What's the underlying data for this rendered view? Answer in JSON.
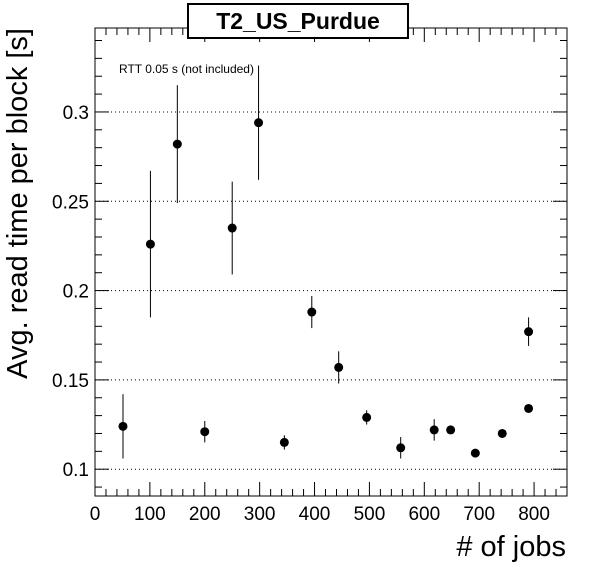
{
  "chart_data": {
    "type": "scatter",
    "title": "T2_US_Purdue",
    "xlabel": "# of jobs",
    "ylabel": "Avg. read time per block [s]",
    "annotation": "RTT 0.05 s (not included)",
    "xlim": [
      0,
      860
    ],
    "ylim": [
      0.085,
      0.347
    ],
    "x_ticks": [
      0,
      100,
      200,
      300,
      400,
      500,
      600,
      700,
      800
    ],
    "y_ticks": [
      0.1,
      0.15,
      0.2,
      0.25,
      0.3
    ],
    "y_tick_labels": [
      "0.1",
      "0.15",
      "0.2",
      "0.25",
      "0.3"
    ],
    "grid": "horizontal dotted at major y ticks",
    "points": [
      {
        "x": 51,
        "y": 0.124,
        "err": 0.018
      },
      {
        "x": 101,
        "y": 0.226,
        "err": 0.041
      },
      {
        "x": 150,
        "y": 0.282,
        "err": 0.033
      },
      {
        "x": 200,
        "y": 0.121,
        "err": 0.006
      },
      {
        "x": 250,
        "y": 0.235,
        "err": 0.026
      },
      {
        "x": 298,
        "y": 0.294,
        "err": 0.032
      },
      {
        "x": 345,
        "y": 0.115,
        "err": 0.004
      },
      {
        "x": 395,
        "y": 0.188,
        "err": 0.009
      },
      {
        "x": 444,
        "y": 0.157,
        "err": 0.009
      },
      {
        "x": 495,
        "y": 0.129,
        "err": 0.004
      },
      {
        "x": 557,
        "y": 0.112,
        "err": 0.006
      },
      {
        "x": 618,
        "y": 0.122,
        "err": 0.006
      },
      {
        "x": 648,
        "y": 0.122,
        "err": 0.002
      },
      {
        "x": 693,
        "y": 0.109,
        "err": 0.002
      },
      {
        "x": 742,
        "y": 0.12,
        "err": 0.002
      },
      {
        "x": 790,
        "y": 0.134,
        "err": 0.002
      },
      {
        "x": 790,
        "y": 0.177,
        "err": 0.008
      }
    ],
    "marker_color": "#000000"
  }
}
